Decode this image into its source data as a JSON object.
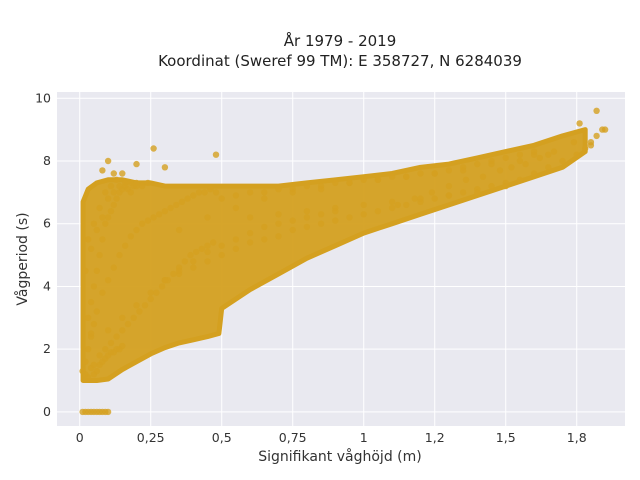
{
  "chart_data": {
    "type": "scatter",
    "title": [
      "År 1979 - 2019",
      "Koordinat (Sweref 99 TM): E 358727, N 6284039"
    ],
    "xlabel": "Signifikant våghöjd (m)",
    "ylabel": "Vågperiod (s)",
    "xlim": [
      -0.08,
      1.92
    ],
    "ylim": [
      -0.45,
      10.2
    ],
    "x_ticks": [
      0,
      0.25,
      0.5,
      0.75,
      1,
      1.25,
      1.5,
      1.75
    ],
    "x_tick_labels": [
      "0",
      "0,25",
      "0,5",
      "0,75",
      "1",
      "1,2",
      "1,5",
      "1,8"
    ],
    "y_ticks": [
      0,
      2,
      4,
      6,
      8,
      10
    ],
    "y_tick_labels": [
      "0",
      "2",
      "4",
      "6",
      "8",
      "10"
    ],
    "grid": true,
    "legend": "none",
    "marker_color": "#d4a020",
    "background_color": "#e9e9f0",
    "series": [
      {
        "x": [
          0.01,
          0.02,
          0.03,
          0.04,
          0.05,
          0.06,
          0.07,
          0.08,
          0.09,
          0.1,
          0.01,
          0.02,
          0.03,
          0.02,
          0.04,
          0.05,
          0.03,
          0.06,
          0.04,
          0.07,
          0.08,
          0.05,
          0.09,
          0.1,
          0.11,
          0.12,
          0.13,
          0.14,
          0.15,
          0.03,
          0.04,
          0.05,
          0.06,
          0.07,
          0.08,
          0.09,
          0.1,
          0.11,
          0.12,
          0.13,
          0.14,
          0.15,
          0.16,
          0.17,
          0.18,
          0.19,
          0.2,
          0.04,
          0.06,
          0.08,
          0.1,
          0.12,
          0.14,
          0.16,
          0.18,
          0.2,
          0.22,
          0.24,
          0.26,
          0.28,
          0.3,
          0.32,
          0.34,
          0.36,
          0.38,
          0.4,
          0.42,
          0.44,
          0.46,
          0.48,
          0.05,
          0.07,
          0.09,
          0.11,
          0.13,
          0.15,
          0.17,
          0.19,
          0.21,
          0.23,
          0.25,
          0.27,
          0.29,
          0.31,
          0.33,
          0.35,
          0.37,
          0.39,
          0.41,
          0.43,
          0.45,
          0.47,
          0.3,
          0.35,
          0.4,
          0.45,
          0.5,
          0.55,
          0.6,
          0.65,
          0.7,
          0.75,
          0.8,
          0.85,
          0.9,
          0.95,
          1.0,
          1.05,
          1.1,
          1.15,
          1.2,
          1.25,
          1.3,
          1.35,
          1.4,
          1.45,
          1.5,
          0.5,
          0.55,
          0.6,
          0.65,
          0.7,
          0.75,
          0.8,
          0.85,
          0.9,
          0.95,
          1.0,
          1.05,
          1.1,
          1.15,
          1.2,
          1.25,
          1.3,
          1.35,
          1.4,
          1.45,
          1.5,
          1.55,
          1.6,
          0.6,
          0.7,
          0.8,
          0.9,
          1.0,
          1.1,
          1.2,
          1.3,
          1.4,
          1.5,
          1.55,
          1.6,
          1.65,
          1.7,
          1.75,
          1.8,
          1.82,
          1.85,
          0.03,
          0.05,
          0.07,
          0.09,
          0.11,
          0.13,
          0.15,
          0.02,
          0.04,
          0.06,
          0.08,
          0.1,
          0.12,
          0.14,
          0.16,
          0.18,
          0.2,
          0.22,
          0.24,
          0.1,
          0.15,
          0.2,
          0.25,
          0.3,
          0.35,
          0.4,
          0.45,
          0.5,
          0.55,
          0.6,
          0.65,
          0.7,
          0.75,
          0.8,
          0.85,
          0.9,
          0.35,
          0.45,
          0.55,
          0.65,
          0.75,
          0.85,
          0.95,
          1.05,
          1.15,
          1.25,
          1.35,
          1.45,
          1.55,
          1.65,
          0.26,
          0.48,
          0.1,
          0.2,
          0.3,
          0.12,
          0.08,
          1.74,
          1.78,
          1.8,
          1.84,
          1.82,
          1.76,
          1.6,
          1.67,
          1.62,
          1.57,
          1.52,
          1.48,
          1.42,
          1.36,
          1.3,
          1.24,
          1.18,
          1.12
        ],
        "y": [
          0,
          0,
          0,
          0,
          0,
          0,
          0,
          0,
          0,
          0,
          1.3,
          1.2,
          1.1,
          1.6,
          1.4,
          1.2,
          2.0,
          1.3,
          2.4,
          1.5,
          1.6,
          2.8,
          1.7,
          1.8,
          1.9,
          1.9,
          2.0,
          2.0,
          2.1,
          3.0,
          3.5,
          4.0,
          4.5,
          5.0,
          5.5,
          6.0,
          6.2,
          6.4,
          6.6,
          6.8,
          7.0,
          7.1,
          7.2,
          7.1,
          7.0,
          7.2,
          7.3,
          2.5,
          3.2,
          3.8,
          4.2,
          4.6,
          5.0,
          5.3,
          5.6,
          5.8,
          6.0,
          6.1,
          6.2,
          6.3,
          6.4,
          6.5,
          6.6,
          6.7,
          6.8,
          6.9,
          7.0,
          7.0,
          7.1,
          7.0,
          1.5,
          1.8,
          2.0,
          2.2,
          2.4,
          2.6,
          2.8,
          3.0,
          3.2,
          3.4,
          3.6,
          3.8,
          4.0,
          4.2,
          4.4,
          4.6,
          4.8,
          5.0,
          5.1,
          5.2,
          5.3,
          5.4,
          4.2,
          4.4,
          4.6,
          4.8,
          5.0,
          5.2,
          5.4,
          5.5,
          5.6,
          5.8,
          5.9,
          6.0,
          6.1,
          6.2,
          6.3,
          6.4,
          6.5,
          6.6,
          6.7,
          6.8,
          6.9,
          7.0,
          7.1,
          7.2,
          7.3,
          6.8,
          6.9,
          7.0,
          7.0,
          7.1,
          7.1,
          7.2,
          7.2,
          7.3,
          7.3,
          7.4,
          7.4,
          7.5,
          7.5,
          7.6,
          7.6,
          7.7,
          7.8,
          7.9,
          8.0,
          8.1,
          8.2,
          8.3,
          6.2,
          6.3,
          6.4,
          6.5,
          6.6,
          6.7,
          6.8,
          6.9,
          7.0,
          7.2,
          7.4,
          7.6,
          7.8,
          8.0,
          8.2,
          8.5,
          8.8,
          9.0,
          5.5,
          6.0,
          6.5,
          7.0,
          7.2,
          7.4,
          7.6,
          4.5,
          5.2,
          5.8,
          6.2,
          6.8,
          7.0,
          7.2,
          7.3,
          7.3,
          7.2,
          7.2,
          7.3,
          2.6,
          3.0,
          3.4,
          3.8,
          4.2,
          4.5,
          4.8,
          5.1,
          5.3,
          5.5,
          5.7,
          5.9,
          6.0,
          6.1,
          6.2,
          6.3,
          6.4,
          5.8,
          6.2,
          6.5,
          6.8,
          7.0,
          7.1,
          7.3,
          7.4,
          7.5,
          7.6,
          7.7,
          7.9,
          8.0,
          8.2,
          8.4,
          8.2,
          8.0,
          7.9,
          7.8,
          7.6,
          7.7,
          8.6,
          8.4,
          8.6,
          9.0,
          9.6,
          9.2,
          8.2,
          8.3,
          8.1,
          7.9,
          7.8,
          7.7,
          7.5,
          7.4,
          7.2,
          7.0,
          6.8,
          6.6
        ]
      }
    ],
    "bands": [
      {
        "x": 0.012,
        "y_min": 1.0,
        "y_max": 6.7
      },
      {
        "x": 0.03,
        "y_min": 1.0,
        "y_max": 7.1
      },
      {
        "x": 0.06,
        "y_min": 1.0,
        "y_max": 7.3
      },
      {
        "x": 0.1,
        "y_min": 1.05,
        "y_max": 7.4
      },
      {
        "x": 0.15,
        "y_min": 1.35,
        "y_max": 7.4
      },
      {
        "x": 0.2,
        "y_min": 1.6,
        "y_max": 7.3
      },
      {
        "x": 0.25,
        "y_min": 1.85,
        "y_max": 7.3
      },
      {
        "x": 0.3,
        "y_min": 2.05,
        "y_max": 7.2
      },
      {
        "x": 0.35,
        "y_min": 2.2,
        "y_max": 7.2
      },
      {
        "x": 0.4,
        "y_min": 2.3,
        "y_max": 7.2
      },
      {
        "x": 0.45,
        "y_min": 2.4,
        "y_max": 7.2
      },
      {
        "x": 0.49,
        "y_min": 2.5,
        "y_max": 7.2
      },
      {
        "x": 0.5,
        "y_min": 3.3,
        "y_max": 7.2
      },
      {
        "x": 0.6,
        "y_min": 3.9,
        "y_max": 7.2
      },
      {
        "x": 0.7,
        "y_min": 4.4,
        "y_max": 7.2
      },
      {
        "x": 0.8,
        "y_min": 4.9,
        "y_max": 7.3
      },
      {
        "x": 0.9,
        "y_min": 5.3,
        "y_max": 7.4
      },
      {
        "x": 1.0,
        "y_min": 5.7,
        "y_max": 7.5
      },
      {
        "x": 1.1,
        "y_min": 6.0,
        "y_max": 7.6
      },
      {
        "x": 1.2,
        "y_min": 6.3,
        "y_max": 7.8
      },
      {
        "x": 1.3,
        "y_min": 6.6,
        "y_max": 7.9
      },
      {
        "x": 1.4,
        "y_min": 6.9,
        "y_max": 8.1
      },
      {
        "x": 1.5,
        "y_min": 7.2,
        "y_max": 8.3
      },
      {
        "x": 1.6,
        "y_min": 7.5,
        "y_max": 8.5
      },
      {
        "x": 1.7,
        "y_min": 7.8,
        "y_max": 8.8
      },
      {
        "x": 1.78,
        "y_min": 8.3,
        "y_max": 9.0
      }
    ]
  }
}
